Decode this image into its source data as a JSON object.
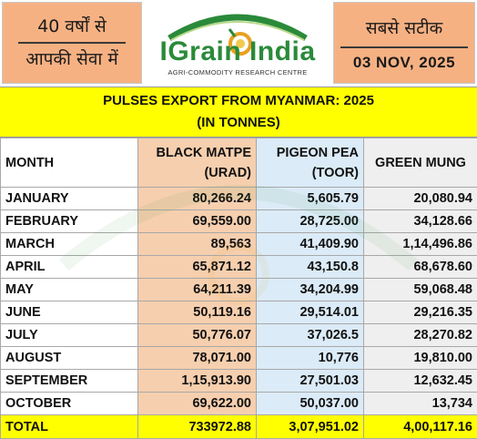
{
  "header": {
    "left_line1": "40 वर्षों से",
    "left_line2": "आपकी सेवा में",
    "logo_name": "IGrain India",
    "logo_tagline": "AGRI-COMMODITY RESEARCH CENTRE",
    "right_hindi": "सबसे सटीक",
    "date": "03 NOV, 2025"
  },
  "title": {
    "line1": "PULSES EXPORT FROM MYANMAR: 2025",
    "line2": "(IN TONNES)"
  },
  "table": {
    "col_month": "MONTH",
    "col_urad_line1": "BLACK MATPE",
    "col_urad_line2": "(URAD)",
    "col_toor_line1": "PIGEON PEA",
    "col_toor_line2": "(TOOR)",
    "col_mung": "GREEN MUNG",
    "rows": [
      {
        "month": "JANUARY",
        "urad": "80,266.24",
        "toor": "5,605.79",
        "mung": "20,080.94"
      },
      {
        "month": "FEBRUARY",
        "urad": "69,559.00",
        "toor": "28,725.00",
        "mung": "34,128.66"
      },
      {
        "month": "MARCH",
        "urad": "89,563",
        "toor": "41,409.90",
        "mung": "1,14,496.86"
      },
      {
        "month": "APRIL",
        "urad": "65,871.12",
        "toor": "43,150.8",
        "mung": "68,678.60"
      },
      {
        "month": "MAY",
        "urad": "64,211.39",
        "toor": "34,204.99",
        "mung": "59,068.48"
      },
      {
        "month": "JUNE",
        "urad": "50,119.16",
        "toor": "29,514.01",
        "mung": "29,216.35"
      },
      {
        "month": "JULY",
        "urad": "50,776.07",
        "toor": "37,026.5",
        "mung": "28,270.82"
      },
      {
        "month": "AUGUST",
        "urad": "78,071.00",
        "toor": "10,776",
        "mung": "19,810.00"
      },
      {
        "month": "SEPTEMBER",
        "urad": "1,15,913.90",
        "toor": "27,501.03",
        "mung": "12,632.45"
      },
      {
        "month": "OCTOBER",
        "urad": "69,622.00",
        "toor": "50,037.00",
        "mung": "13,734"
      }
    ],
    "total": {
      "month": "TOTAL",
      "urad": "733972.88",
      "toor": "3,07,951.02",
      "mung": "4,00,117.16"
    }
  },
  "colors": {
    "orange": "#f6b183",
    "yellow": "#ffff00",
    "logo_green": "#2a8a3a"
  }
}
